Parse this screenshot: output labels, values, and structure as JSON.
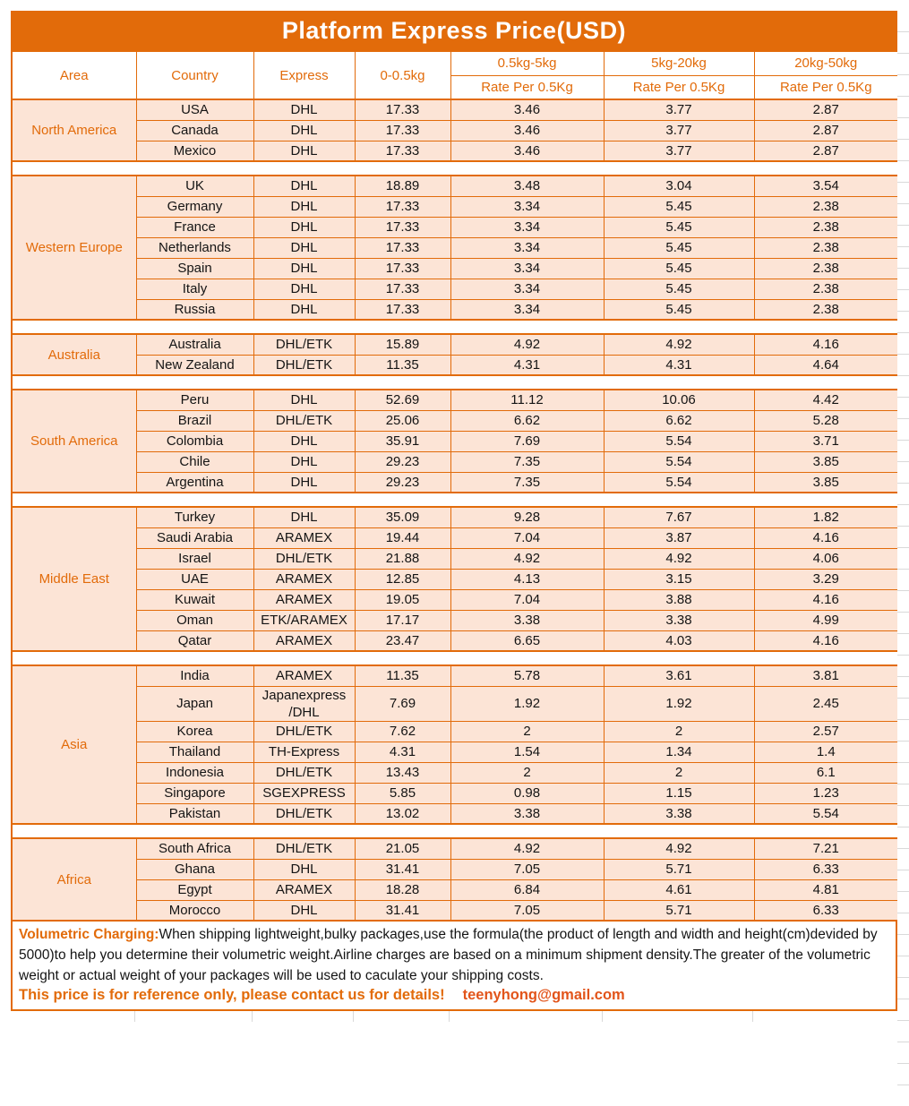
{
  "title": "Platform Express Price(USD)",
  "header": {
    "area": "Area",
    "country": "Country",
    "express": "Express",
    "first_weight": "0-0.5kg",
    "bands": [
      {
        "range": "0.5kg-5kg",
        "sub": "Rate Per 0.5Kg"
      },
      {
        "range": "5kg-20kg",
        "sub": "Rate Per 0.5Kg"
      },
      {
        "range": "20kg-50kg",
        "sub": "Rate Per 0.5Kg"
      }
    ]
  },
  "groups": [
    {
      "area": "North America",
      "rows": [
        {
          "country": "USA",
          "express": "DHL",
          "values": [
            "17.33",
            "3.46",
            "3.77",
            "2.87"
          ]
        },
        {
          "country": "Canada",
          "express": "DHL",
          "values": [
            "17.33",
            "3.46",
            "3.77",
            "2.87"
          ]
        },
        {
          "country": "Mexico",
          "express": "DHL",
          "values": [
            "17.33",
            "3.46",
            "3.77",
            "2.87"
          ]
        }
      ]
    },
    {
      "area": "Western Europe",
      "rows": [
        {
          "country": "UK",
          "express": "DHL",
          "values": [
            "18.89",
            "3.48",
            "3.04",
            "3.54"
          ]
        },
        {
          "country": "Germany",
          "express": "DHL",
          "values": [
            "17.33",
            "3.34",
            "5.45",
            "2.38"
          ]
        },
        {
          "country": "France",
          "express": "DHL",
          "values": [
            "17.33",
            "3.34",
            "5.45",
            "2.38"
          ]
        },
        {
          "country": "Netherlands",
          "express": "DHL",
          "values": [
            "17.33",
            "3.34",
            "5.45",
            "2.38"
          ]
        },
        {
          "country": "Spain",
          "express": "DHL",
          "values": [
            "17.33",
            "3.34",
            "5.45",
            "2.38"
          ]
        },
        {
          "country": "Italy",
          "express": "DHL",
          "values": [
            "17.33",
            "3.34",
            "5.45",
            "2.38"
          ]
        },
        {
          "country": "Russia",
          "express": "DHL",
          "values": [
            "17.33",
            "3.34",
            "5.45",
            "2.38"
          ]
        }
      ]
    },
    {
      "area": "Australia",
      "rows": [
        {
          "country": "Australia",
          "express": "DHL/ETK",
          "values": [
            "15.89",
            "4.92",
            "4.92",
            "4.16"
          ]
        },
        {
          "country": "New Zealand",
          "express": "DHL/ETK",
          "values": [
            "11.35",
            "4.31",
            "4.31",
            "4.64"
          ]
        }
      ]
    },
    {
      "area": "South America",
      "rows": [
        {
          "country": "Peru",
          "express": "DHL",
          "values": [
            "52.69",
            "11.12",
            "10.06",
            "4.42"
          ]
        },
        {
          "country": "Brazil",
          "express": "DHL/ETK",
          "values": [
            "25.06",
            "6.62",
            "6.62",
            "5.28"
          ]
        },
        {
          "country": "Colombia",
          "express": "DHL",
          "values": [
            "35.91",
            "7.69",
            "5.54",
            "3.71"
          ]
        },
        {
          "country": "Chile",
          "express": "DHL",
          "values": [
            "29.23",
            "7.35",
            "5.54",
            "3.85"
          ]
        },
        {
          "country": "Argentina",
          "express": "DHL",
          "values": [
            "29.23",
            "7.35",
            "5.54",
            "3.85"
          ]
        }
      ]
    },
    {
      "area": "Middle East",
      "rows": [
        {
          "country": "Turkey",
          "express": "DHL",
          "values": [
            "35.09",
            "9.28",
            "7.67",
            "1.82"
          ]
        },
        {
          "country": "Saudi Arabia",
          "express": "ARAMEX",
          "values": [
            "19.44",
            "7.04",
            "3.87",
            "4.16"
          ]
        },
        {
          "country": "Israel",
          "express": "DHL/ETK",
          "values": [
            "21.88",
            "4.92",
            "4.92",
            "4.06"
          ]
        },
        {
          "country": "UAE",
          "express": "ARAMEX",
          "values": [
            "12.85",
            "4.13",
            "3.15",
            "3.29"
          ]
        },
        {
          "country": "Kuwait",
          "express": "ARAMEX",
          "values": [
            "19.05",
            "7.04",
            "3.88",
            "4.16"
          ]
        },
        {
          "country": "Oman",
          "express": "ETK/ARAMEX",
          "values": [
            "17.17",
            "3.38",
            "3.38",
            "4.99"
          ]
        },
        {
          "country": "Qatar",
          "express": "ARAMEX",
          "values": [
            "23.47",
            "6.65",
            "4.03",
            "4.16"
          ]
        }
      ]
    },
    {
      "area": "Asia",
      "rows": [
        {
          "country": "India",
          "express": "ARAMEX",
          "values": [
            "11.35",
            "5.78",
            "3.61",
            "3.81"
          ]
        },
        {
          "country": "Japan",
          "express": "Japanexpress\n/DHL",
          "values": [
            "7.69",
            "1.92",
            "1.92",
            "2.45"
          ]
        },
        {
          "country": "Korea",
          "express": "DHL/ETK",
          "values": [
            "7.62",
            "2",
            "2",
            "2.57"
          ]
        },
        {
          "country": "Thailand",
          "express": "TH-Express",
          "values": [
            "4.31",
            "1.54",
            "1.34",
            "1.4"
          ]
        },
        {
          "country": "Indonesia",
          "express": "DHL/ETK",
          "values": [
            "13.43",
            "2",
            "2",
            "6.1"
          ]
        },
        {
          "country": "Singapore",
          "express": "SGEXPRESS",
          "values": [
            "5.85",
            "0.98",
            "1.15",
            "1.23"
          ]
        },
        {
          "country": "Pakistan",
          "express": "DHL/ETK",
          "values": [
            "13.02",
            "3.38",
            "3.38",
            "5.54"
          ]
        }
      ]
    },
    {
      "area": "Africa",
      "rows": [
        {
          "country": "South Africa",
          "express": "DHL/ETK",
          "values": [
            "21.05",
            "4.92",
            "4.92",
            "7.21"
          ]
        },
        {
          "country": "Ghana",
          "express": "DHL",
          "values": [
            "31.41",
            "7.05",
            "5.71",
            "6.33"
          ]
        },
        {
          "country": "Egypt",
          "express": "ARAMEX",
          "values": [
            "18.28",
            "6.84",
            "4.61",
            "4.81"
          ]
        },
        {
          "country": "Morocco",
          "express": "DHL",
          "values": [
            "31.41",
            "7.05",
            "5.71",
            "6.33"
          ]
        }
      ]
    }
  ],
  "footer": {
    "volumetric_label": "Volumetric Charging:",
    "volumetric_text": "When shipping lightweight,bulky packages,use the formula(the product of length and width and height(cm)devided by 5000)to help you determine their volumetric weight.Airline charges are based on a minimum shipment density.The greater of the volumetric weight or actual weight of your packages will be used to caculate your shipping costs.",
    "reference_note": "This price is for reference only, please contact us for details!",
    "email": "teenyhong@gmail.com"
  },
  "colors": {
    "accent": "#e26b0a",
    "row_fill": "#fce4d6",
    "title_text": "#ffffff",
    "email_color": "#e2541a",
    "gridline": "#d9d9d9"
  }
}
